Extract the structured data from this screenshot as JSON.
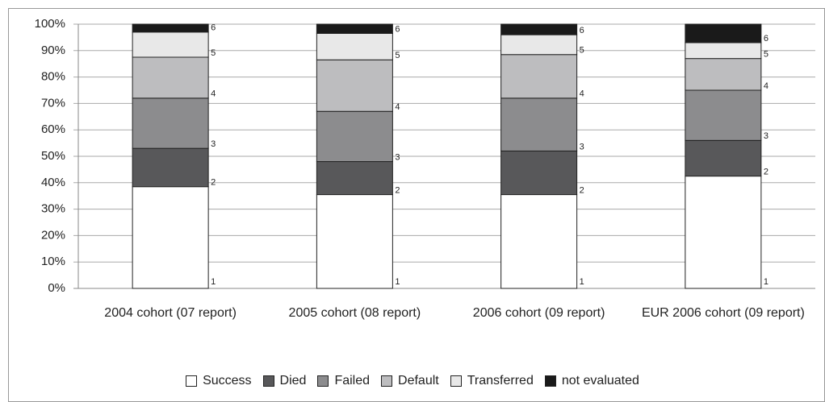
{
  "chart_data": {
    "type": "stacked_bar",
    "categories": [
      "2004 cohort (07 report)",
      "2005 cohort (08 report)",
      "2006 cohort (09 report)",
      "EUR 2006 cohort (09 report)"
    ],
    "series": [
      {
        "name": "Success",
        "color": "#ffffff",
        "values": [
          38.5,
          35.5,
          35.5,
          42.5
        ]
      },
      {
        "name": "Died",
        "color": "#58585a",
        "values": [
          14.5,
          12.5,
          16.5,
          13.5
        ]
      },
      {
        "name": "Failed",
        "color": "#8c8c8e",
        "values": [
          19,
          19,
          20,
          19
        ]
      },
      {
        "name": "Default",
        "color": "#bdbdbf",
        "values": [
          15.5,
          19.5,
          16.5,
          12
        ]
      },
      {
        "name": "Transferred",
        "color": "#e8e8e8",
        "values": [
          9.5,
          10,
          7.5,
          6
        ]
      },
      {
        "name": "not evaluated",
        "color": "#1a1a1a",
        "values": [
          3,
          3.5,
          4,
          7
        ]
      }
    ],
    "segment_labels": [
      "1",
      "2",
      "3",
      "4",
      "5",
      "6"
    ],
    "ylim": [
      0,
      100
    ],
    "yticks": [
      {
        "value": 0,
        "label": "0%"
      },
      {
        "value": 10,
        "label": "10%"
      },
      {
        "value": 20,
        "label": "20%"
      },
      {
        "value": 30,
        "label": "30%"
      },
      {
        "value": 40,
        "label": "40%"
      },
      {
        "value": 50,
        "label": "50%"
      },
      {
        "value": 60,
        "label": "60%"
      },
      {
        "value": 70,
        "label": "70%"
      },
      {
        "value": 80,
        "label": "80%"
      },
      {
        "value": 90,
        "label": "90%"
      },
      {
        "value": 100,
        "label": "100%"
      }
    ],
    "grid": true,
    "legend": "bottom"
  }
}
